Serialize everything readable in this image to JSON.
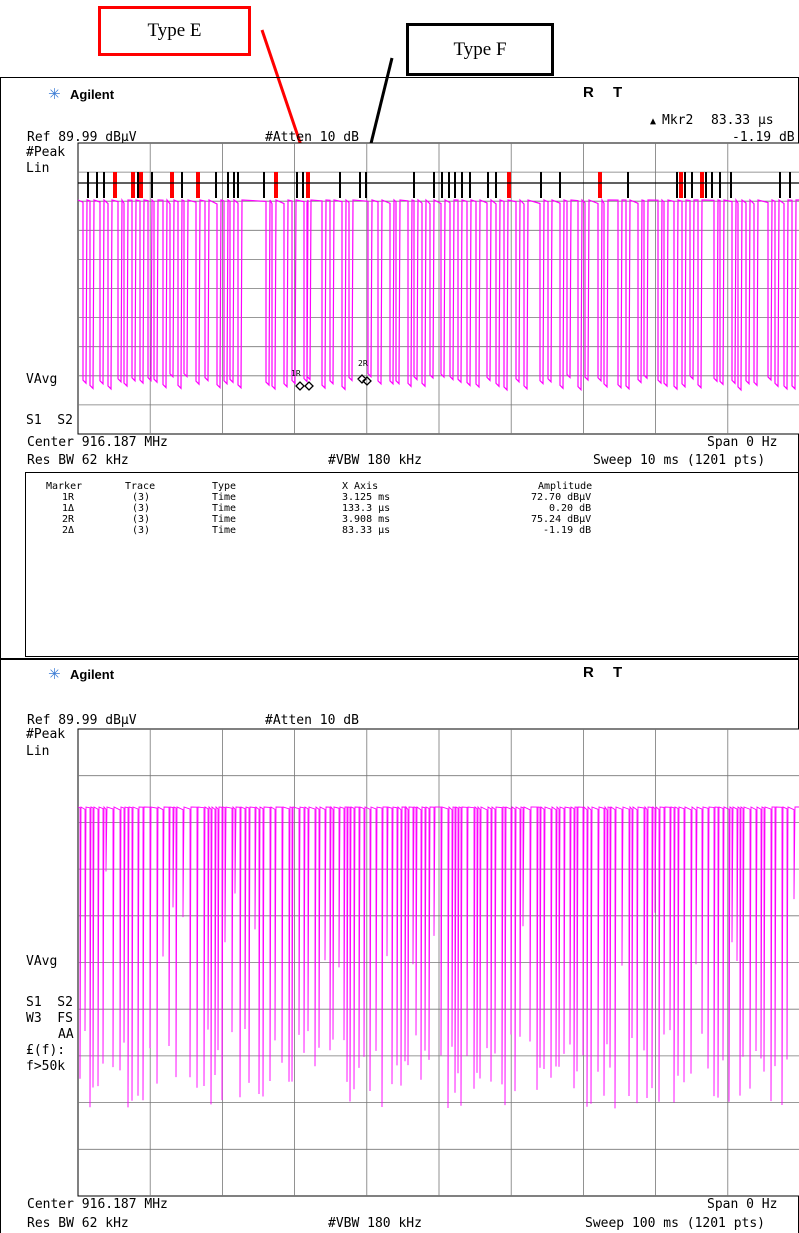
{
  "callouts": {
    "type_e": "Type E",
    "type_f": "Type F",
    "type_e_color": "#ff0000",
    "type_f_color": "#000000"
  },
  "screen1": {
    "brand": "Agilent",
    "status_r": "R",
    "status_t": "T",
    "marker_readout_label": "Mkr2",
    "marker_readout_time": "83.33 µs",
    "marker_readout_amp": "-1.19 dB",
    "ref_level": "Ref 89.99 dBµV",
    "atten": "#Atten 10 dB",
    "left_labels": [
      "#Peak",
      "Lin",
      "VAvg",
      "S1  S2"
    ],
    "center_freq": "Center 916.187 MHz",
    "span": "Span 0 Hz",
    "res_bw": "Res BW 62 kHz",
    "vbw": "#VBW 180 kHz",
    "sweep": "Sweep 10 ms (1201 pts)",
    "marker_table": {
      "headers": [
        "Marker",
        "Trace",
        "Type",
        "X Axis",
        "Amplitude"
      ],
      "rows": [
        [
          "1R",
          "(3)",
          "Time",
          "3.125 ms",
          "72.70 dBµV"
        ],
        [
          "1Δ",
          "(3)",
          "Time",
          "133.3 µs",
          "0.20 dB"
        ],
        [
          "2R",
          "(3)",
          "Time",
          "3.908 ms",
          "75.24 dBµV"
        ],
        [
          "2Δ",
          "(3)",
          "Time",
          "83.33 µs",
          "-1.19 dB"
        ]
      ]
    },
    "trace_color": "#ff00ff"
  },
  "screen2": {
    "brand": "Agilent",
    "status_r": "R",
    "status_t": "T",
    "ref_level": "Ref 89.99 dBµV",
    "atten": "#Atten 10 dB",
    "left_labels": [
      "#Peak",
      "Lin",
      "VAvg",
      "S1  S2",
      "W3  FS",
      "AA",
      "£(f):",
      "f>50k"
    ],
    "center_freq": "Center 916.187 MHz",
    "span": "Span 0 Hz",
    "res_bw": "Res BW 62 kHz",
    "vbw": "#VBW 180 kHz",
    "sweep": "Sweep 100 ms (1201 pts)",
    "trace_color": "#ff00ff"
  }
}
